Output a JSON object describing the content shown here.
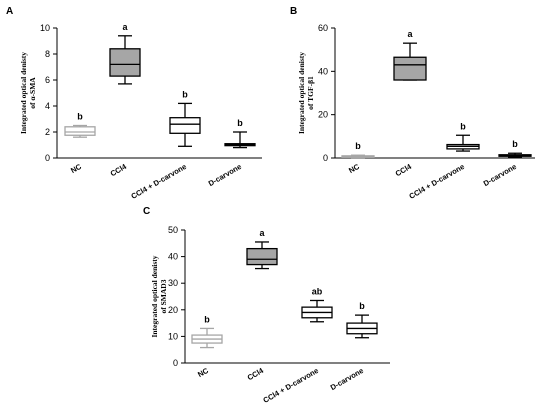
{
  "chart_data": [
    {
      "panel": "A",
      "type": "boxplot",
      "ylabel": [
        "Integrated optical denisty",
        "of α-SMA"
      ],
      "ylim": [
        0,
        10
      ],
      "yticks": [
        0,
        2,
        4,
        6,
        8,
        10
      ],
      "categories": [
        "NC",
        "CCl4",
        "CCl4 + D-carvone",
        "D-carvone"
      ],
      "boxes": [
        {
          "min": 1.6,
          "q1": 1.75,
          "median": 2.0,
          "q3": 2.4,
          "max": 2.5,
          "sig": "b",
          "fill": "#ffffff",
          "stroke": "#a6a6a6"
        },
        {
          "min": 5.7,
          "q1": 6.3,
          "median": 7.2,
          "q3": 8.4,
          "max": 9.4,
          "sig": "a",
          "fill": "#a6a6a6",
          "stroke": "#000000"
        },
        {
          "min": 0.9,
          "q1": 1.9,
          "median": 2.6,
          "q3": 3.1,
          "max": 4.2,
          "sig": "b",
          "fill": "#ffffff",
          "stroke": "#000000"
        },
        {
          "min": 0.8,
          "q1": 0.95,
          "median": 1.05,
          "q3": 1.1,
          "max": 2.0,
          "sig": "b",
          "fill": "#ffffff",
          "stroke": "#000000"
        }
      ]
    },
    {
      "panel": "B",
      "type": "boxplot",
      "ylabel": [
        "Integrated optical denisty",
        "of TGF-β1"
      ],
      "ylim": [
        0,
        60
      ],
      "yticks": [
        0,
        20,
        40,
        60
      ],
      "categories": [
        "NC",
        "CCl4",
        "CCl4 + D-carvone",
        "D-carvone"
      ],
      "boxes": [
        {
          "min": 0.2,
          "q1": 0.4,
          "median": 0.7,
          "q3": 1.0,
          "max": 1.3,
          "sig": "b",
          "fill": "#ffffff",
          "stroke": "#a6a6a6"
        },
        {
          "min": 36,
          "q1": 36,
          "median": 43,
          "q3": 46.5,
          "max": 53,
          "sig": "a",
          "fill": "#a6a6a6",
          "stroke": "#000000"
        },
        {
          "min": 3.2,
          "q1": 4.2,
          "median": 5.4,
          "q3": 6.2,
          "max": 10.5,
          "sig": "b",
          "fill": "#ffffff",
          "stroke": "#000000"
        },
        {
          "min": 0.5,
          "q1": 0.8,
          "median": 1.1,
          "q3": 1.5,
          "max": 2.2,
          "sig": "b",
          "fill": "#ffffff",
          "stroke": "#000000"
        }
      ]
    },
    {
      "panel": "C",
      "type": "boxplot",
      "ylabel": [
        "Integrated optical denisty",
        "of SMAD3"
      ],
      "ylim": [
        0,
        50
      ],
      "yticks": [
        0,
        10,
        20,
        30,
        40,
        50
      ],
      "categories": [
        "NC",
        "CCl4",
        "CCl4 + D-carvone",
        "D-carvone"
      ],
      "boxes": [
        {
          "min": 5.8,
          "q1": 7.5,
          "median": 9.0,
          "q3": 10.5,
          "max": 13.0,
          "sig": "b",
          "fill": "#ffffff",
          "stroke": "#a6a6a6"
        },
        {
          "min": 35.5,
          "q1": 37,
          "median": 39,
          "q3": 43,
          "max": 45.5,
          "sig": "a",
          "fill": "#a6a6a6",
          "stroke": "#000000"
        },
        {
          "min": 15.5,
          "q1": 17,
          "median": 19,
          "q3": 21,
          "max": 23.5,
          "sig": "ab",
          "fill": "#ffffff",
          "stroke": "#000000"
        },
        {
          "min": 9.5,
          "q1": 11,
          "median": 13,
          "q3": 15,
          "max": 18,
          "sig": "b",
          "fill": "#ffffff",
          "stroke": "#000000"
        }
      ]
    }
  ]
}
